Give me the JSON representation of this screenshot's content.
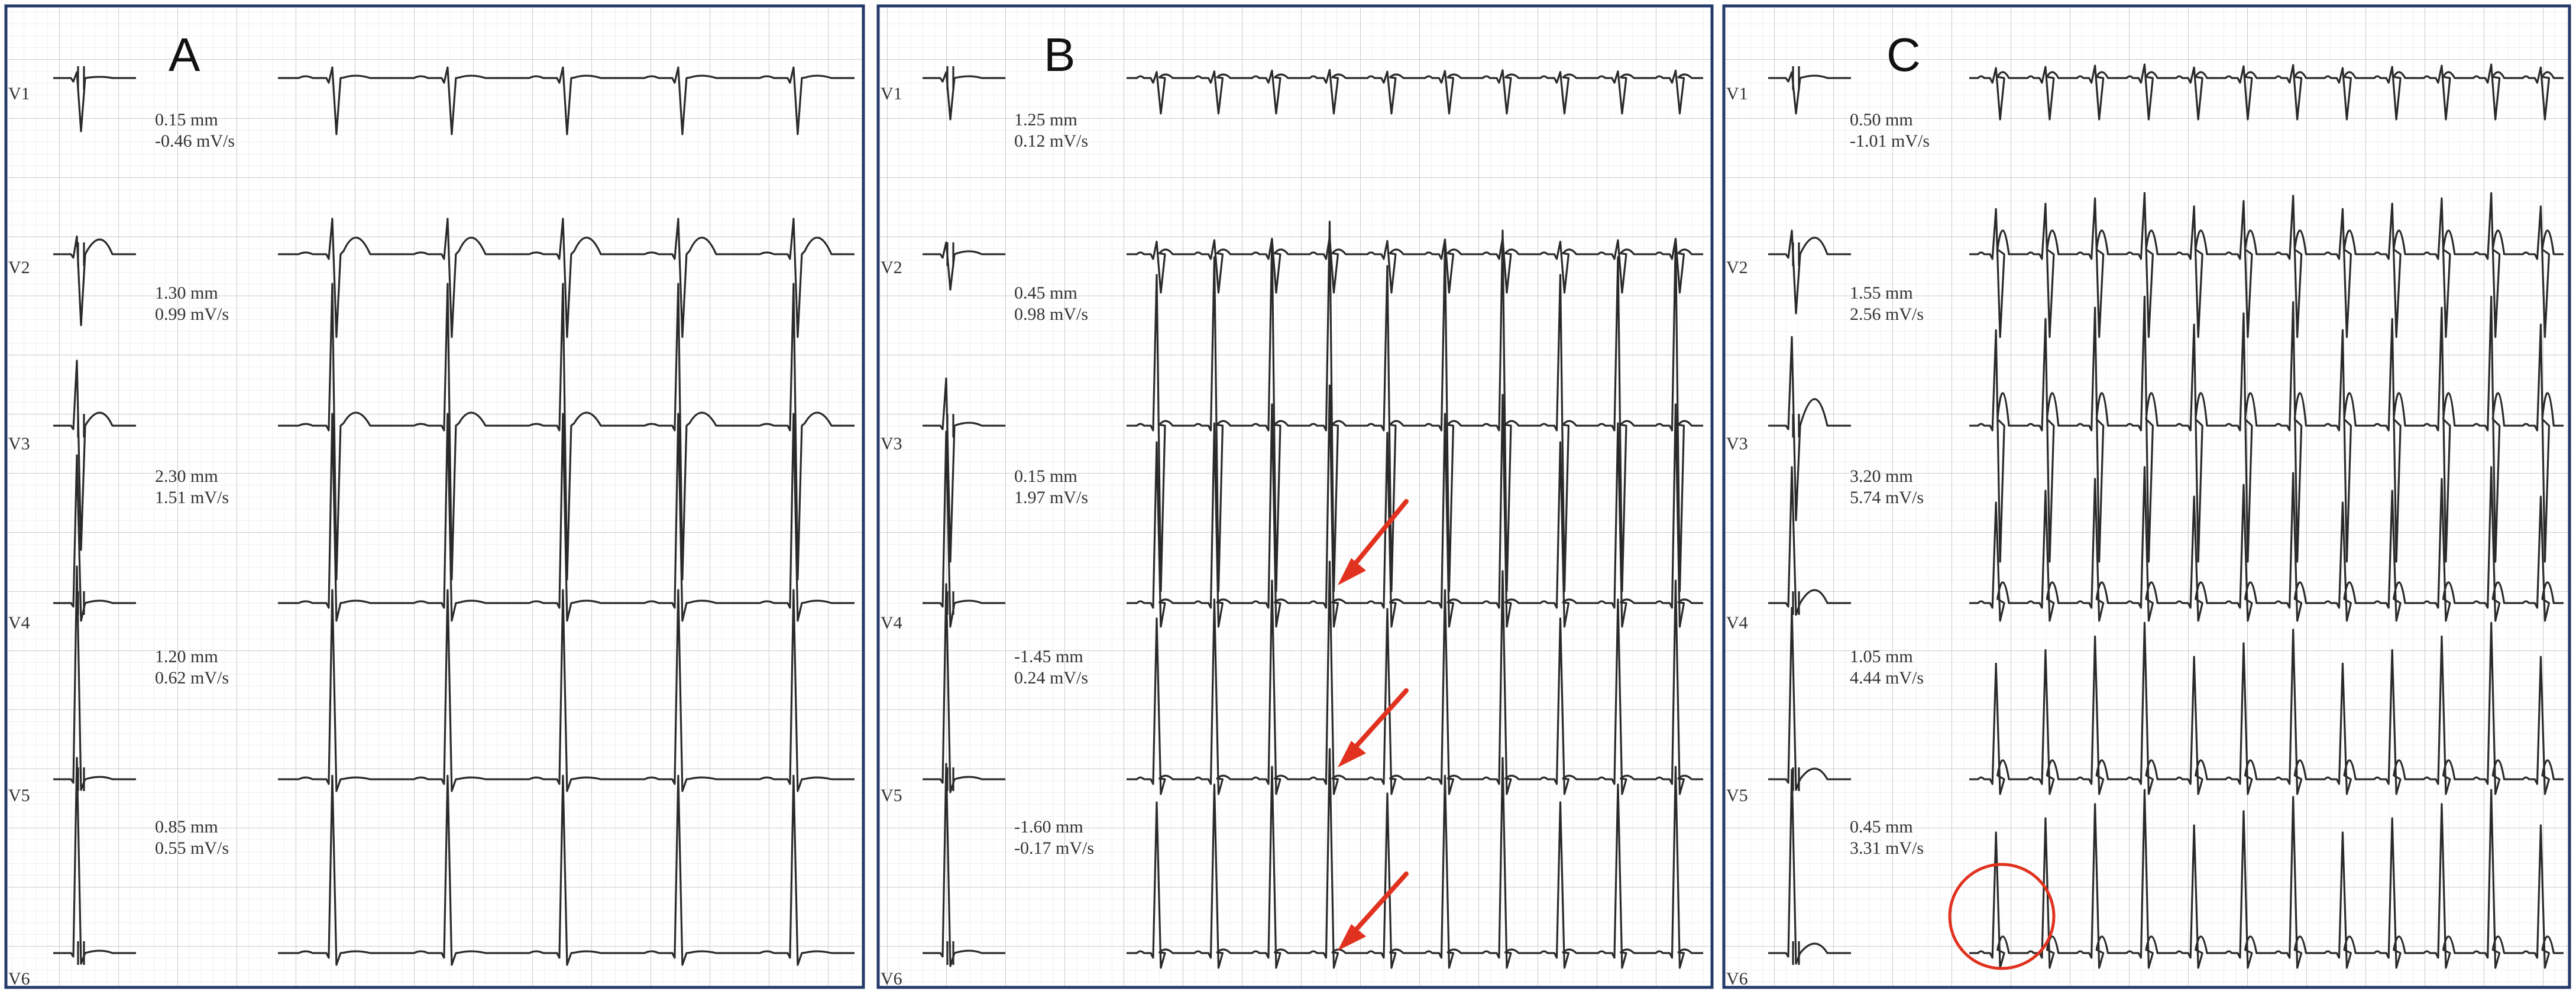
{
  "panels": [
    {
      "letter": "A",
      "leads": [
        {
          "lead": "V1",
          "measurement": "0.15 mm",
          "slope": "-0.46 mV/s"
        },
        {
          "lead": "V2",
          "measurement": "1.30 mm",
          "slope": "0.99 mV/s"
        },
        {
          "lead": "V3",
          "measurement": "2.30 mm",
          "slope": "1.51 mV/s"
        },
        {
          "lead": "V4",
          "measurement": "1.20 mm",
          "slope": "0.62 mV/s"
        },
        {
          "lead": "V5",
          "measurement": "0.85 mm",
          "slope": "0.55 mV/s"
        },
        {
          "lead": "V6",
          "measurement": "",
          "slope": ""
        }
      ]
    },
    {
      "letter": "B",
      "leads": [
        {
          "lead": "V1",
          "measurement": "1.25 mm",
          "slope": "0.12 mV/s"
        },
        {
          "lead": "V2",
          "measurement": "0.45 mm",
          "slope": "0.98 mV/s"
        },
        {
          "lead": "V3",
          "measurement": "0.15 mm",
          "slope": "1.97 mV/s"
        },
        {
          "lead": "V4",
          "measurement": "-1.45 mm",
          "slope": "0.24 mV/s"
        },
        {
          "lead": "V5",
          "measurement": "-1.60 mm",
          "slope": "-0.17 mV/s"
        },
        {
          "lead": "V6",
          "measurement": "",
          "slope": ""
        }
      ]
    },
    {
      "letter": "C",
      "leads": [
        {
          "lead": "V1",
          "measurement": "0.50 mm",
          "slope": "-1.01 mV/s"
        },
        {
          "lead": "V2",
          "measurement": "1.55 mm",
          "slope": "2.56 mV/s"
        },
        {
          "lead": "V3",
          "measurement": "3.20 mm",
          "slope": "5.74 mV/s"
        },
        {
          "lead": "V4",
          "measurement": "1.05 mm",
          "slope": "4.44 mV/s"
        },
        {
          "lead": "V5",
          "measurement": "0.45 mm",
          "slope": "3.31 mV/s"
        },
        {
          "lead": "V6",
          "measurement": "",
          "slope": ""
        }
      ]
    }
  ],
  "colors": {
    "grid": "#dcdcdc",
    "trace": "#2a2a2a",
    "annotation": "#e0321e",
    "frame": "#243a6b"
  },
  "annotations": {
    "panel_B_arrow_leads": [
      "V4",
      "V5",
      "V6"
    ],
    "panel_C_circle_lead": "V6"
  }
}
